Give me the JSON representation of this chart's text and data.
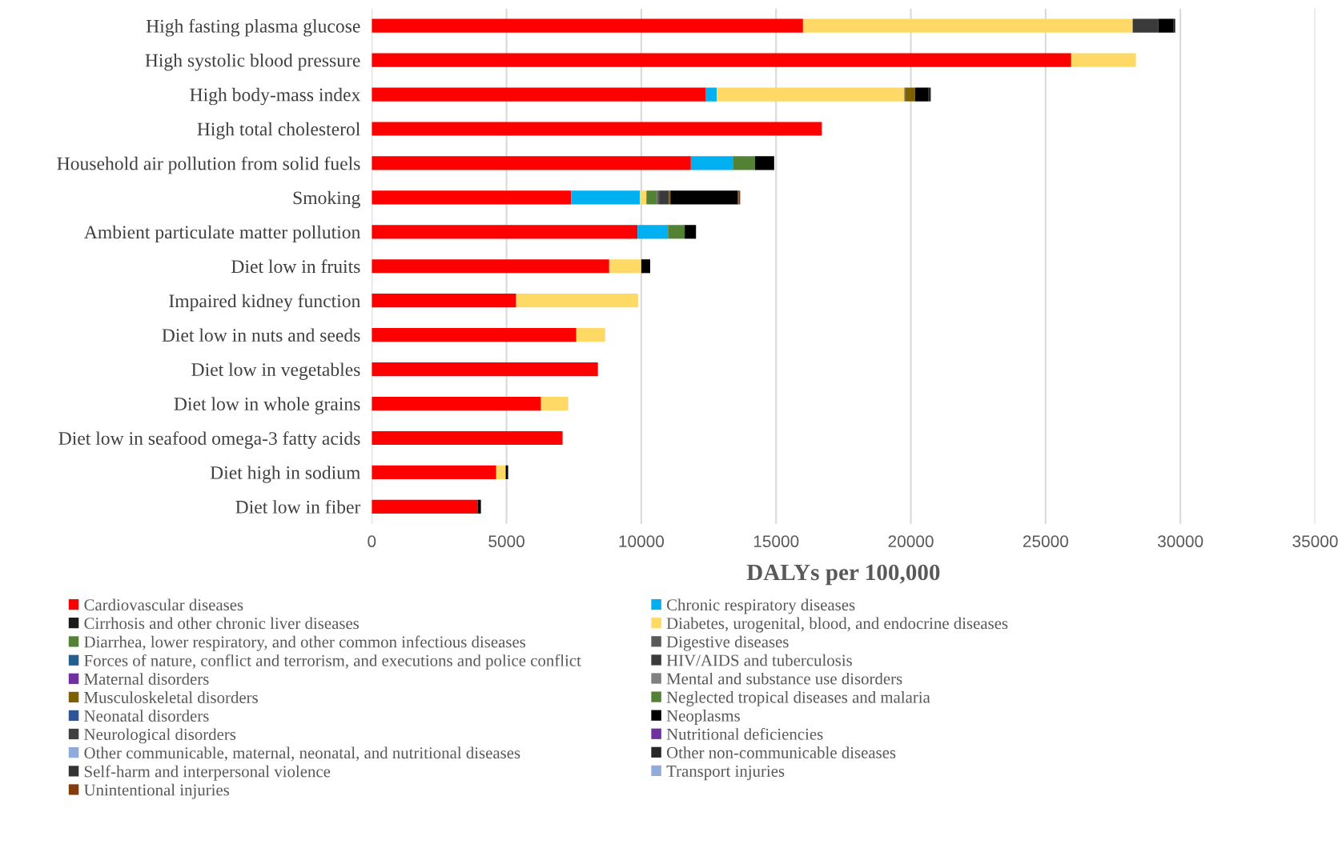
{
  "chart_data": {
    "type": "bar",
    "orientation": "horizontal",
    "stacked": true,
    "xlabel": "DALYs per 100,000",
    "categories": [
      "High fasting plasma glucose",
      "High systolic blood pressure",
      "High body-mass index",
      "High total cholesterol",
      "Household air pollution from solid fuels",
      "Smoking",
      "Ambient particulate matter pollution",
      "Diet low in fruits",
      "Impaired kidney function",
      "Diet low in nuts and seeds",
      "Diet low in vegetables",
      "Diet low in whole grains",
      "Diet low in seafood omega-3 fatty acids",
      "Diet high in sodium",
      "Diet low in fiber"
    ],
    "xlim": [
      0,
      35000
    ],
    "xticks": [
      0,
      5000,
      10000,
      15000,
      20000,
      25000,
      30000,
      35000
    ],
    "grid": "x",
    "legend": "bottom",
    "series": [
      {
        "name": "Cardiovascular diseases",
        "color": "#ff0000",
        "values": [
          16000,
          25950,
          12380,
          16700,
          11840,
          7400,
          9860,
          8810,
          5360,
          7590,
          8390,
          6280,
          7080,
          4620,
          3930
        ]
      },
      {
        "name": "Chronic respiratory diseases",
        "color": "#00b0f0",
        "values": [
          null,
          null,
          420,
          null,
          1580,
          2550,
          1130,
          null,
          null,
          null,
          null,
          null,
          null,
          null,
          null
        ]
      },
      {
        "name": "Cirrhosis and other chronic liver diseases",
        "color": "#1a1a1a",
        "values": [
          null,
          null,
          null,
          null,
          null,
          null,
          null,
          null,
          null,
          null,
          null,
          null,
          null,
          null,
          null
        ]
      },
      {
        "name": "Diabetes, urogenital, blood, and endocrine diseases",
        "color": "#ffd966",
        "values": [
          12230,
          2400,
          6960,
          null,
          null,
          240,
          null,
          1190,
          4520,
          1070,
          null,
          1010,
          null,
          350,
          null
        ]
      },
      {
        "name": "Diarrhea, lower respiratory, and other common infectious diseases",
        "color": "#548235",
        "values": [
          null,
          null,
          null,
          null,
          800,
          390,
          620,
          null,
          null,
          null,
          null,
          null,
          null,
          null,
          null
        ]
      },
      {
        "name": "Digestive diseases",
        "color": "#595959",
        "values": [
          null,
          null,
          40,
          null,
          null,
          80,
          null,
          null,
          null,
          null,
          null,
          null,
          null,
          null,
          null
        ]
      },
      {
        "name": "Forces of nature, conflict and terrorism, and executions and police conflict",
        "color": "#255e91",
        "values": [
          null,
          null,
          null,
          null,
          null,
          null,
          null,
          null,
          null,
          null,
          null,
          null,
          null,
          null,
          null
        ]
      },
      {
        "name": "HIV/AIDS and tuberculosis",
        "color": "#3a3a3a",
        "values": [
          950,
          null,
          null,
          null,
          null,
          360,
          null,
          null,
          null,
          null,
          null,
          null,
          null,
          null,
          null
        ]
      },
      {
        "name": "Maternal disorders",
        "color": "#7030a0",
        "values": [
          null,
          null,
          null,
          null,
          null,
          null,
          null,
          null,
          null,
          null,
          null,
          null,
          null,
          null,
          null
        ]
      },
      {
        "name": "Mental and substance use disorders",
        "color": "#808080",
        "values": [
          null,
          null,
          null,
          null,
          null,
          null,
          null,
          null,
          null,
          null,
          null,
          null,
          null,
          null,
          null
        ]
      },
      {
        "name": "Musculoskeletal disorders",
        "color": "#7f6000",
        "values": [
          null,
          null,
          360,
          null,
          null,
          60,
          null,
          null,
          null,
          null,
          null,
          null,
          null,
          null,
          null
        ]
      },
      {
        "name": "Neglected tropical diseases and malaria",
        "color": "#548235",
        "values": [
          null,
          null,
          null,
          null,
          null,
          null,
          null,
          null,
          null,
          null,
          null,
          null,
          null,
          null,
          null
        ]
      },
      {
        "name": "Neonatal disorders",
        "color": "#2f5597",
        "values": [
          null,
          null,
          null,
          null,
          null,
          null,
          null,
          null,
          null,
          null,
          null,
          null,
          null,
          null,
          null
        ]
      },
      {
        "name": "Neoplasms",
        "color": "#000000",
        "values": [
          550,
          null,
          500,
          null,
          710,
          2500,
          420,
          330,
          null,
          null,
          null,
          null,
          null,
          90,
          120
        ]
      },
      {
        "name": "Neurological disorders",
        "color": "#404040",
        "values": [
          null,
          null,
          null,
          null,
          null,
          null,
          null,
          null,
          null,
          null,
          null,
          null,
          null,
          null,
          null
        ]
      },
      {
        "name": "Nutritional deficiencies",
        "color": "#7030a0",
        "values": [
          null,
          null,
          null,
          null,
          null,
          null,
          null,
          null,
          null,
          null,
          null,
          null,
          null,
          null,
          null
        ]
      },
      {
        "name": "Other communicable, maternal, neonatal, and nutritional diseases",
        "color": "#8faadc",
        "values": [
          null,
          null,
          null,
          null,
          null,
          null,
          null,
          null,
          null,
          null,
          null,
          null,
          null,
          null,
          null
        ]
      },
      {
        "name": "Other non-communicable diseases",
        "color": "#262626",
        "values": [
          80,
          null,
          80,
          null,
          null,
          30,
          null,
          null,
          null,
          null,
          null,
          null,
          null,
          null,
          null
        ]
      },
      {
        "name": "Self-harm and interpersonal violence",
        "color": "#333333",
        "values": [
          null,
          null,
          null,
          null,
          null,
          null,
          null,
          null,
          null,
          null,
          null,
          null,
          null,
          null,
          null
        ]
      },
      {
        "name": "Transport injuries",
        "color": "#8faadc",
        "values": [
          null,
          null,
          null,
          null,
          null,
          null,
          null,
          null,
          null,
          null,
          null,
          null,
          null,
          null,
          null
        ]
      },
      {
        "name": "Unintentional injuries",
        "color": "#843c0c",
        "values": [
          null,
          null,
          null,
          null,
          null,
          60,
          null,
          null,
          null,
          null,
          null,
          null,
          null,
          null,
          null
        ]
      }
    ]
  }
}
